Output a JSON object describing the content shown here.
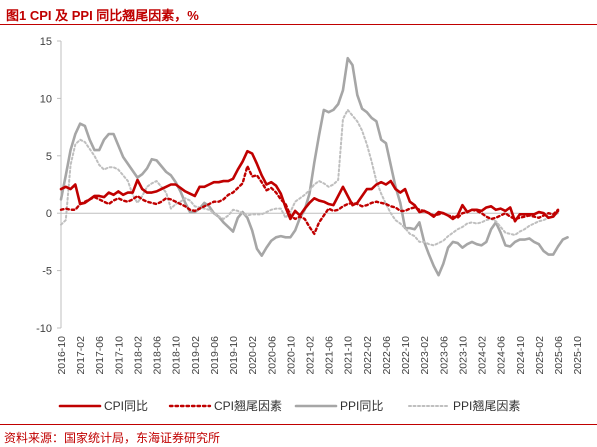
{
  "figure": {
    "title": "图1  CPI 及 PPI 同比翘尾因素，%",
    "source": "资料来源：国家统计局，东海证券研究所"
  },
  "colors": {
    "accent": "#c00000",
    "cpi": "#c00000",
    "cpi_tail": "#c00000",
    "ppi": "#a6a6a6",
    "ppi_tail": "#bfbfbf",
    "axis": "#bfbfbf",
    "text": "#404040"
  },
  "chart_data": {
    "type": "line",
    "x_tick_labels": [
      "2016-10",
      "2017-02",
      "2017-06",
      "2017-10",
      "2018-02",
      "2018-06",
      "2018-10",
      "2019-02",
      "2019-06",
      "2019-10",
      "2020-02",
      "2020-06",
      "2020-10",
      "2021-02",
      "2021-06",
      "2021-10",
      "2022-02",
      "2022-06",
      "2022-10",
      "2023-02",
      "2023-06",
      "2023-10",
      "2024-02",
      "2024-06",
      "2024-10",
      "2025-02",
      "2025-06",
      "2025-10"
    ],
    "y_ticks": [
      15,
      10,
      5,
      0,
      -5,
      -10
    ],
    "ylim": [
      -10,
      15
    ],
    "grid": false,
    "legend_position": "bottom",
    "series": [
      {
        "name": "CPI同比",
        "style": "solid-thick",
        "values": [
          2.1,
          2.3,
          2.1,
          2.5,
          0.8,
          0.9,
          1.2,
          1.5,
          1.5,
          1.4,
          1.8,
          1.6,
          1.9,
          1.6,
          1.8,
          1.8,
          2.9,
          2.1,
          1.8,
          1.8,
          1.9,
          2.1,
          2.3,
          2.5,
          2.5,
          2.2,
          1.9,
          1.7,
          1.5,
          2.3,
          2.3,
          2.5,
          2.7,
          2.7,
          2.8,
          2.8,
          3.0,
          3.8,
          4.5,
          5.4,
          5.2,
          4.3,
          3.3,
          2.5,
          2.7,
          2.4,
          1.7,
          0.5,
          -0.5,
          0.2,
          -0.2,
          0.4,
          0.9,
          1.3,
          1.1,
          1.0,
          0.8,
          0.7,
          1.5,
          2.3,
          1.5,
          0.7,
          0.9,
          1.5,
          2.1,
          2.1,
          2.5,
          2.7,
          2.5,
          2.8,
          2.1,
          1.8,
          2.1,
          1.0,
          0.7,
          0.1,
          0.2,
          0.0,
          -0.3,
          0.1,
          0.0,
          -0.2,
          -0.5,
          -0.2,
          0.7,
          0.1,
          0.3,
          0.3,
          0.2,
          0.5,
          0.6,
          0.3,
          0.4,
          0.2,
          0.5,
          -0.7,
          -0.1,
          -0.1,
          -0.1,
          -0.1,
          0.1,
          0.0,
          -0.4,
          -0.3,
          0.2
        ]
      },
      {
        "name": "CPI翘尾因素",
        "style": "dotted-thick",
        "values": [
          0.3,
          0.4,
          0.3,
          0.3,
          0.8,
          1.0,
          1.2,
          1.4,
          1.2,
          1.0,
          0.8,
          1.1,
          1.3,
          1.1,
          1.0,
          1.2,
          1.5,
          1.2,
          1.0,
          0.9,
          0.8,
          1.0,
          1.3,
          1.2,
          1.0,
          0.8,
          0.6,
          0.3,
          0.2,
          0.4,
          0.6,
          0.8,
          1.0,
          1.0,
          1.2,
          1.6,
          1.8,
          2.2,
          2.6,
          4.1,
          3.2,
          3.3,
          2.7,
          2.0,
          2.2,
          1.8,
          1.2,
          0.8,
          -0.2,
          -0.5,
          -0.3,
          -0.5,
          -1.2,
          -1.8,
          -0.8,
          -0.2,
          0.4,
          0.2,
          0.3,
          0.6,
          0.8,
          0.9,
          0.8,
          0.6,
          0.7,
          0.9,
          1.0,
          0.9,
          0.8,
          0.6,
          0.5,
          0.2,
          0.2,
          0.4,
          0.5,
          0.3,
          0.2,
          0.0,
          -0.2,
          -0.1,
          0.0,
          -0.2,
          -0.3,
          -0.4,
          0.0,
          0.1,
          0.3,
          0.2,
          0.0,
          -0.3,
          -0.5,
          -0.4,
          -0.2,
          0.0,
          -0.3,
          -0.5,
          -0.4,
          -0.3,
          -0.2,
          -0.3,
          -0.4,
          -0.2,
          0.0,
          -0.1,
          0.3
        ]
      },
      {
        "name": "PPI同比",
        "style": "solid-thick",
        "values": [
          1.2,
          3.3,
          5.5,
          6.9,
          7.8,
          7.6,
          6.4,
          5.5,
          5.5,
          6.4,
          6.9,
          6.9,
          5.9,
          4.9,
          4.3,
          3.7,
          3.1,
          3.4,
          3.9,
          4.7,
          4.6,
          4.1,
          3.6,
          3.3,
          2.7,
          1.9,
          0.9,
          0.1,
          0.1,
          0.4,
          0.9,
          0.6,
          0.0,
          -0.3,
          -0.8,
          -1.2,
          -1.6,
          -0.4,
          0.1,
          -0.4,
          -1.5,
          -3.1,
          -3.7,
          -3.0,
          -2.4,
          -2.1,
          -2.0,
          -2.1,
          -2.1,
          -1.5,
          -0.4,
          0.3,
          1.7,
          4.4,
          6.8,
          9.0,
          8.8,
          9.0,
          9.5,
          10.7,
          13.5,
          12.9,
          10.3,
          9.1,
          8.8,
          8.3,
          8.0,
          6.4,
          6.1,
          4.2,
          2.3,
          0.9,
          -1.3,
          -1.3,
          -1.4,
          -0.8,
          -2.5,
          -3.6,
          -4.6,
          -5.4,
          -4.4,
          -3.0,
          -2.5,
          -2.6,
          -3.0,
          -2.7,
          -2.5,
          -2.7,
          -2.8,
          -2.5,
          -1.4,
          -0.8,
          -1.7,
          -2.8,
          -2.9,
          -2.5,
          -2.3,
          -2.3,
          -2.2,
          -2.5,
          -2.7,
          -3.3,
          -3.6,
          -3.6,
          -2.9,
          -2.3,
          -2.1
        ]
      },
      {
        "name": "PPI翘尾因素",
        "style": "dotted-thin",
        "values": [
          -1.0,
          -0.6,
          4.2,
          6.0,
          6.4,
          6.2,
          5.6,
          5.0,
          4.2,
          3.8,
          4.0,
          4.0,
          3.8,
          3.3,
          2.8,
          1.6,
          0.9,
          1.5,
          2.3,
          2.6,
          2.8,
          2.3,
          1.8,
          0.4,
          0.8,
          1.0,
          1.3,
          1.1,
          0.6,
          0.5,
          0.4,
          0.3,
          0.0,
          -0.3,
          -0.5,
          -0.2,
          0.3,
          0.2,
          0.0,
          -0.2,
          -0.1,
          -0.1,
          -0.1,
          0.1,
          0.3,
          0.4,
          0.4,
          -0.4,
          0.1,
          1.0,
          1.3,
          1.6,
          2.0,
          2.5,
          2.8,
          2.6,
          2.3,
          2.5,
          2.9,
          8.2,
          9.0,
          8.5,
          8.0,
          7.2,
          6.0,
          4.5,
          2.8,
          1.7,
          0.8,
          0.0,
          -0.6,
          -0.9,
          -1.3,
          -1.8,
          -2.0,
          -2.5,
          -2.5,
          -2.7,
          -2.8,
          -2.6,
          -2.4,
          -2.0,
          -1.7,
          -1.4,
          -1.2,
          -0.9,
          -0.8,
          -0.9,
          -0.8,
          -0.6,
          -0.5,
          -0.7,
          -1.2,
          -1.7,
          -1.8,
          -1.9,
          -1.6,
          -1.4,
          -1.1,
          -0.9,
          -0.7,
          -0.6,
          -0.4,
          -0.2,
          0.0
        ]
      }
    ]
  }
}
